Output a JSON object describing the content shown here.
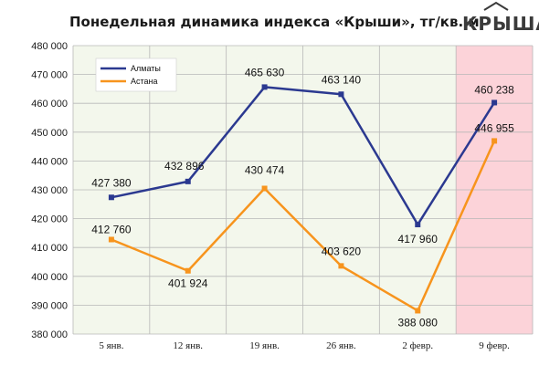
{
  "header": {
    "logo_text": "КРЫША"
  },
  "chart_data": {
    "type": "line",
    "title": "Понедельная динамика индекса «Крыши», тг/кв. м",
    "categories": [
      "5 янв.",
      "12 янв.",
      "19 янв.",
      "26 янв.",
      "2 февр.",
      "9 февр."
    ],
    "series": [
      {
        "name": "Алматы",
        "color": "#2b3990",
        "values": [
          427380,
          432896,
          465630,
          463140,
          417960,
          460238
        ],
        "labels": [
          "427 380",
          "432 896",
          "465 630",
          "463 140",
          "417 960",
          "460 238"
        ]
      },
      {
        "name": "Астана",
        "color": "#f7941d",
        "values": [
          412760,
          401924,
          430474,
          403620,
          388080,
          446955
        ],
        "labels": [
          "412 760",
          "401 924",
          "430 474",
          "403 620",
          "388 080",
          "446 955"
        ]
      }
    ],
    "ylim": [
      380000,
      480000
    ],
    "yticks": [
      "380 000",
      "390 000",
      "400 000",
      "410 000",
      "420 000",
      "430 000",
      "440 000",
      "450 000",
      "460 000",
      "470 000",
      "480 000"
    ],
    "grid": true,
    "legend": "top-left",
    "colors": {
      "plot_background": "#f3f7ec",
      "highlight_background": "#fcd3d9",
      "grid": "#b8b8b8"
    },
    "highlighted_category": "9 февр."
  }
}
